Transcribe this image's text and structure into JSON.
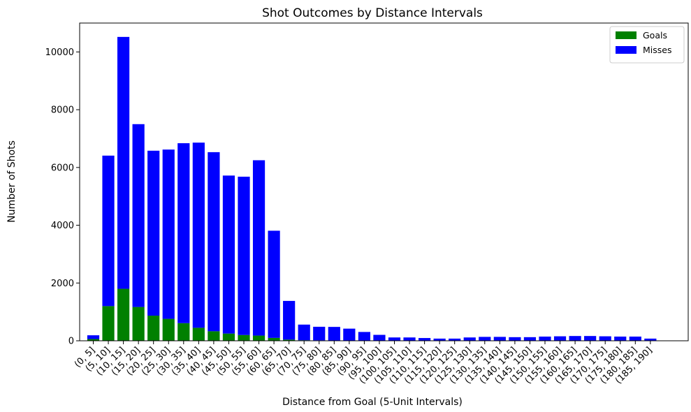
{
  "chart_data": {
    "type": "bar",
    "stacked": true,
    "title": "Shot Outcomes by Distance Intervals",
    "xlabel": "Distance from Goal (5-Unit Intervals)",
    "ylabel": "Number of Shots",
    "ylim": [
      0,
      11000
    ],
    "yticks": [
      0,
      2000,
      4000,
      6000,
      8000,
      10000
    ],
    "grid": false,
    "legend_position": "top-right",
    "categories": [
      "(0, 5]",
      "(5, 10]",
      "(10, 15]",
      "(15, 20]",
      "(20, 25]",
      "(25, 30]",
      "(30, 35]",
      "(35, 40]",
      "(40, 45]",
      "(45, 50]",
      "(50, 55]",
      "(55, 60]",
      "(60, 65]",
      "(65, 70]",
      "(70, 75]",
      "(75, 80]",
      "(80, 85]",
      "(85, 90]",
      "(90, 95]",
      "(95, 100]",
      "(100, 105]",
      "(105, 110]",
      "(110, 115]",
      "(115, 120]",
      "(120, 125]",
      "(125, 130]",
      "(130, 135]",
      "(135, 140]",
      "(140, 145]",
      "(145, 150]",
      "(150, 155]",
      "(155, 160]",
      "(160, 165]",
      "(165, 170]",
      "(170, 175]",
      "(175, 180]",
      "(180, 185]",
      "(185, 190]"
    ],
    "series": [
      {
        "name": "Goals",
        "color": "#008000",
        "values": [
          60,
          1200,
          1800,
          1170,
          870,
          760,
          610,
          450,
          330,
          250,
          200,
          180,
          100,
          40,
          20,
          15,
          10,
          10,
          5,
          5,
          5,
          5,
          5,
          5,
          5,
          5,
          5,
          5,
          5,
          5,
          5,
          5,
          5,
          5,
          5,
          5,
          5,
          5
        ]
      },
      {
        "name": "Misses",
        "color": "#0000ff",
        "values": [
          130,
          5210,
          8720,
          6330,
          5710,
          5860,
          6230,
          6410,
          6200,
          5470,
          5480,
          6070,
          3710,
          1340,
          540,
          470,
          470,
          410,
          300,
          200,
          110,
          110,
          90,
          70,
          70,
          110,
          130,
          130,
          120,
          120,
          140,
          150,
          160,
          160,
          150,
          140,
          140,
          70
        ]
      }
    ]
  }
}
